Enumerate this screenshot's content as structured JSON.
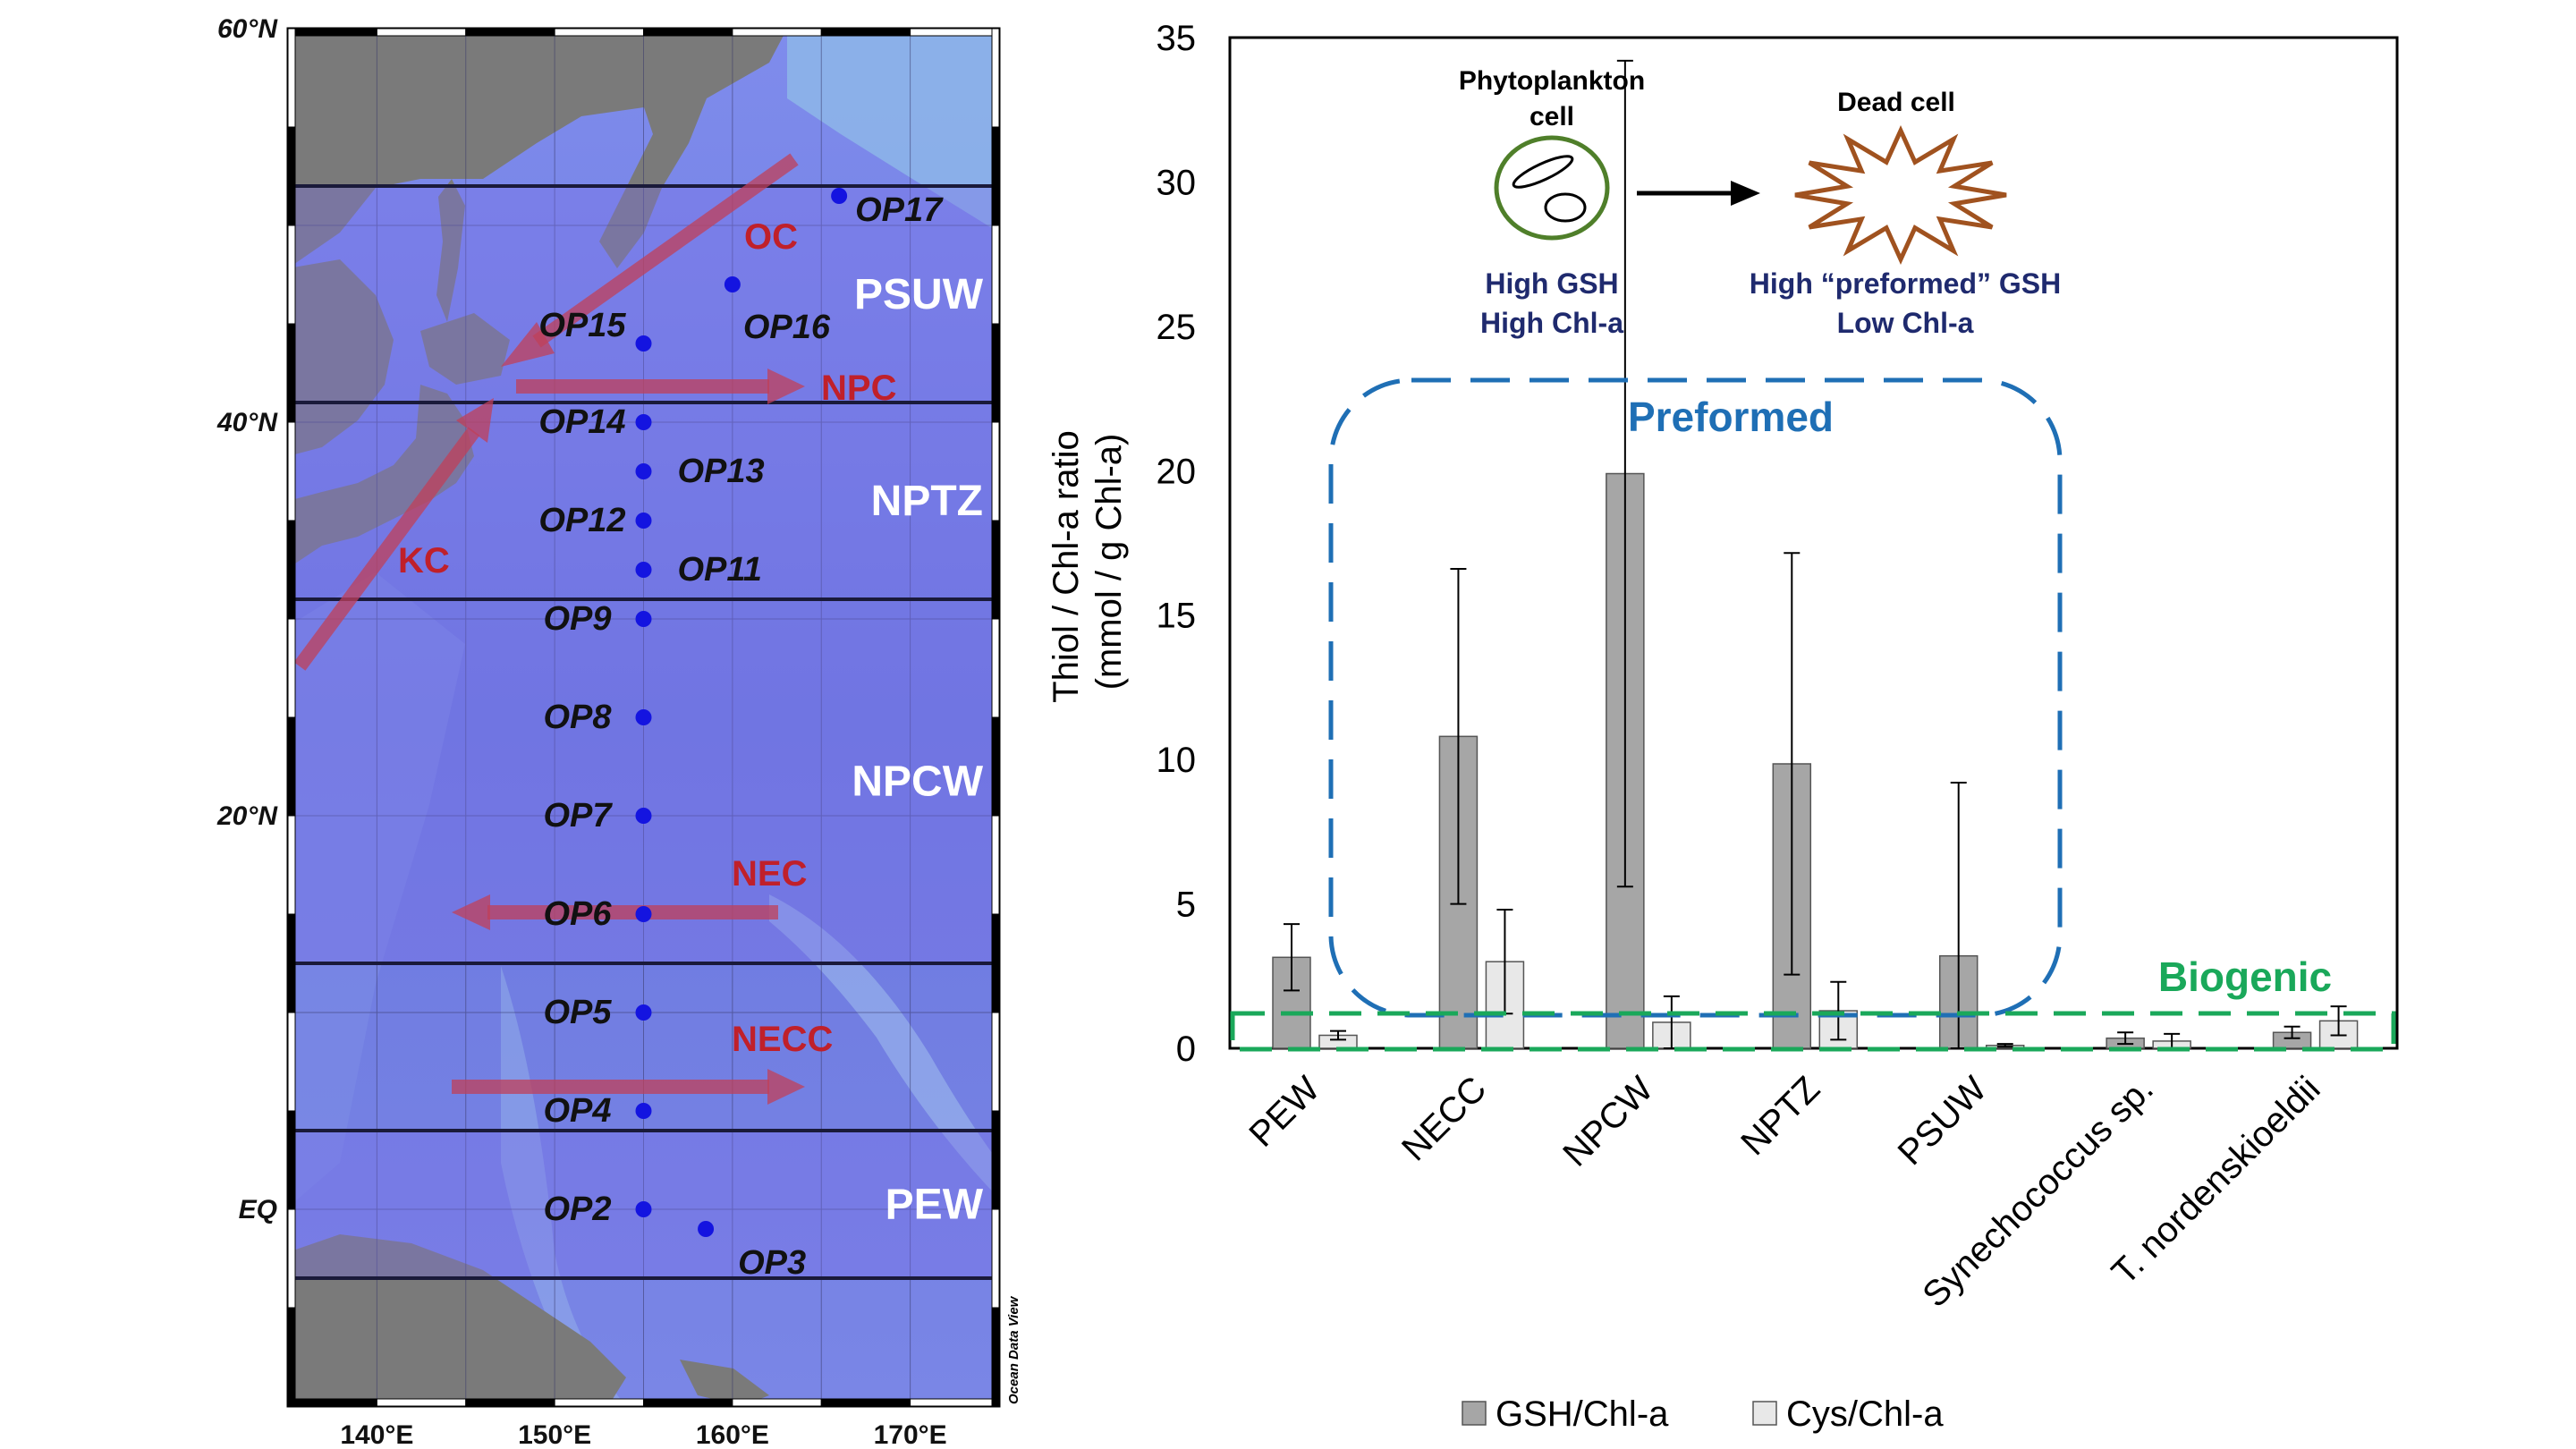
{
  "map": {
    "lat_labels": [
      {
        "text": "60°N",
        "lat": 60
      },
      {
        "text": "40°N",
        "lat": 40
      },
      {
        "text": "20°N",
        "lat": 20
      },
      {
        "text": "EQ",
        "lat": 0
      }
    ],
    "lon_labels": [
      {
        "text": "140°E",
        "lon": 140
      },
      {
        "text": "150°E",
        "lon": 150
      },
      {
        "text": "160°E",
        "lon": 160
      },
      {
        "text": "170°E",
        "lon": 170
      }
    ],
    "lat_range": [
      -10,
      60
    ],
    "lon_range": [
      135,
      175
    ],
    "stations": [
      {
        "name": "OP17",
        "lat": 51.5,
        "lon": 166
      },
      {
        "name": "OP16",
        "lat": 47,
        "lon": 160
      },
      {
        "name": "OP15",
        "lat": 44,
        "lon": 155
      },
      {
        "name": "OP14",
        "lat": 40,
        "lon": 155
      },
      {
        "name": "OP13",
        "lat": 37.5,
        "lon": 155
      },
      {
        "name": "OP12",
        "lat": 35,
        "lon": 155
      },
      {
        "name": "OP11",
        "lat": 32.5,
        "lon": 155
      },
      {
        "name": "OP9",
        "lat": 30,
        "lon": 155
      },
      {
        "name": "OP8",
        "lat": 25,
        "lon": 155
      },
      {
        "name": "OP7",
        "lat": 20,
        "lon": 155
      },
      {
        "name": "OP6",
        "lat": 15,
        "lon": 155
      },
      {
        "name": "OP5",
        "lat": 10,
        "lon": 155
      },
      {
        "name": "OP4",
        "lat": 5,
        "lon": 155
      },
      {
        "name": "OP2",
        "lat": 0,
        "lon": 155
      },
      {
        "name": "OP3",
        "lat": -1,
        "lon": 158.5
      }
    ],
    "regions": [
      {
        "name": "PSUW",
        "lat_range": [
          41,
          52
        ]
      },
      {
        "name": "NPTZ",
        "lat_range": [
          31,
          41
        ]
      },
      {
        "name": "NPCW",
        "lat_range": [
          12.5,
          31
        ]
      },
      {
        "name": "PEW",
        "lat_range": [
          -3.5,
          4
        ]
      }
    ],
    "currents": [
      "OC",
      "NPC",
      "KC",
      "NEC",
      "NECC"
    ],
    "credit": "Ocean Data View",
    "colors": {
      "ocean": "#6f7fe0",
      "land": "#777777",
      "arrow": "#c0405a",
      "station": "#1414e0"
    }
  },
  "chart_data": {
    "type": "bar",
    "categories": [
      "PEW",
      "NECC",
      "NPCW",
      "NPTZ",
      "PSUW",
      "Synechococcus sp.",
      "T. nordenskioeldii"
    ],
    "series": [
      {
        "name": "GSH/Chl-a",
        "values": [
          3.15,
          10.8,
          19.9,
          9.85,
          3.2,
          0.35,
          0.55
        ],
        "error": [
          1.15,
          5.8,
          14.3,
          7.3,
          6.0,
          0.2,
          0.2
        ],
        "color": "#a6a6a6"
      },
      {
        "name": "Cys/Chl-a",
        "values": [
          0.45,
          3.0,
          0.9,
          1.3,
          0.1,
          0.25,
          0.95
        ],
        "error": [
          0.15,
          1.8,
          0.9,
          1.0,
          0.05,
          0.25,
          0.5
        ],
        "color": "#e8e8e8"
      }
    ],
    "ylabel": "Thiol / Chl-a ratio\n(mmol / g Chl-a)",
    "ylim": [
      0,
      35
    ],
    "yticks": [
      0,
      5,
      10,
      15,
      20,
      25,
      30,
      35
    ],
    "legend": "bottom",
    "annotations": {
      "preformed": "Preformed",
      "biogenic": "Biogenic",
      "cell_title": [
        "Phytoplankton",
        "cell"
      ],
      "cell_traits": [
        "High GSH",
        "High Chl-a"
      ],
      "dead_title": "Dead cell",
      "dead_traits": [
        "High “preformed” GSH",
        "Low Chl-a"
      ]
    },
    "colors": {
      "preformed_box": "#1f6fb5",
      "biogenic_box": "#1aa85a",
      "live_cell": "#4f7f2a",
      "dead_cell": "#a0521f"
    }
  }
}
